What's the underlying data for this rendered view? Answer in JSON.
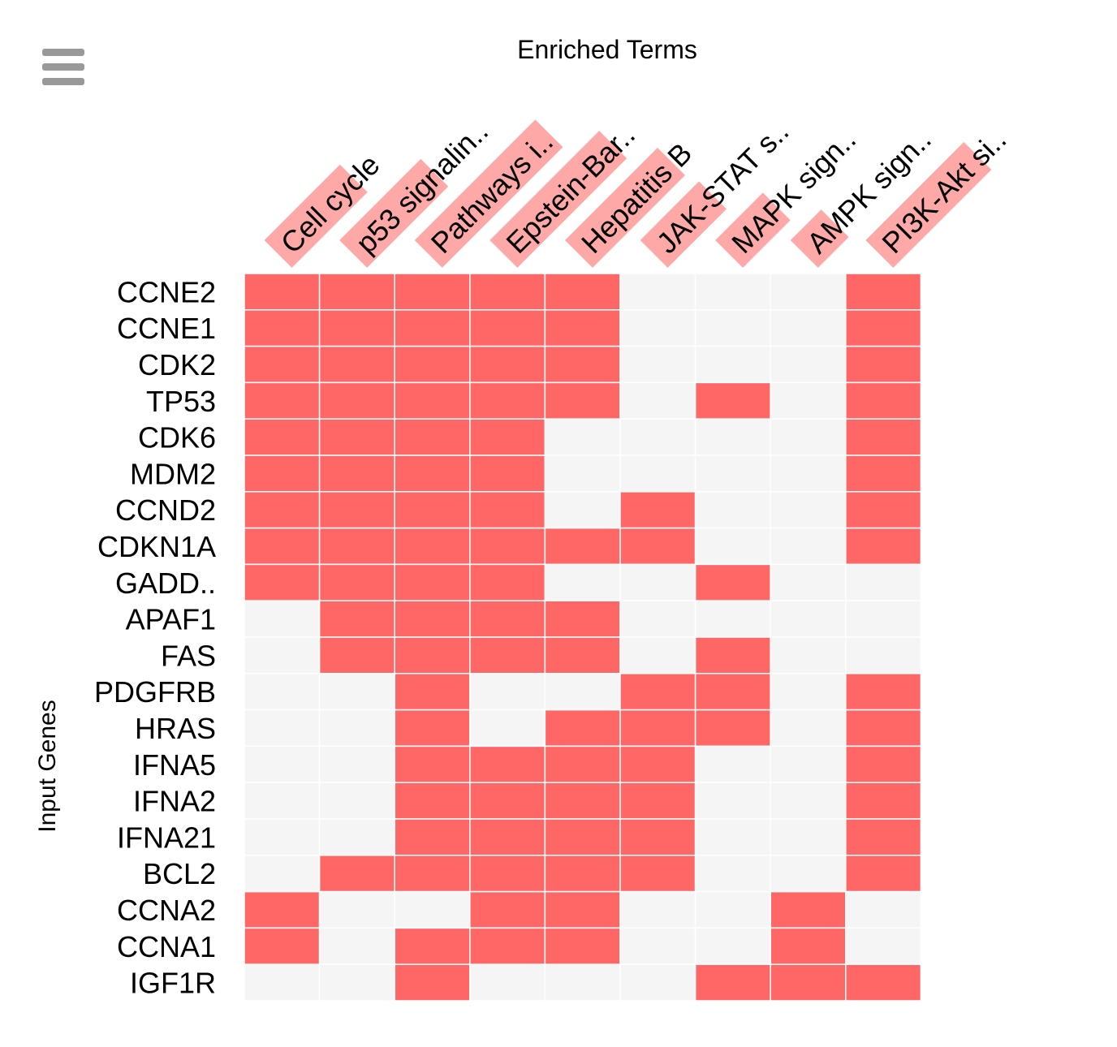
{
  "menu": {
    "icon": "hamburger-menu-icon"
  },
  "chart_data": {
    "type": "heatmap",
    "title": "Enriched Terms",
    "xlabel": "",
    "ylabel": "Input Genes",
    "columns": [
      "Cell cycle",
      "p53 signalin..",
      "Pathways i..",
      "Epstein-Bar..",
      "Hepatitis B",
      "JAK-STAT s..",
      "MAPK sign..",
      "AMPK sign..",
      "PI3K-Akt si.."
    ],
    "rows": [
      "CCNE2",
      "CCNE1",
      "CDK2",
      "TP53",
      "CDK6",
      "MDM2",
      "CCND2",
      "CDKN1A",
      "GADD..",
      "APAF1",
      "FAS",
      "PDGFRB",
      "HRAS",
      "IFNA5",
      "IFNA2",
      "IFNA21",
      "BCL2",
      "CCNA2",
      "CCNA1",
      "IGF1R"
    ],
    "matrix": [
      [
        1,
        1,
        1,
        1,
        1,
        0,
        0,
        0,
        1
      ],
      [
        1,
        1,
        1,
        1,
        1,
        0,
        0,
        0,
        1
      ],
      [
        1,
        1,
        1,
        1,
        1,
        0,
        0,
        0,
        1
      ],
      [
        1,
        1,
        1,
        1,
        1,
        0,
        1,
        0,
        1
      ],
      [
        1,
        1,
        1,
        1,
        0,
        0,
        0,
        0,
        1
      ],
      [
        1,
        1,
        1,
        1,
        0,
        0,
        0,
        0,
        1
      ],
      [
        1,
        1,
        1,
        1,
        0,
        1,
        0,
        0,
        1
      ],
      [
        1,
        1,
        1,
        1,
        1,
        1,
        0,
        0,
        1
      ],
      [
        1,
        1,
        1,
        1,
        0,
        0,
        1,
        0,
        0
      ],
      [
        0,
        1,
        1,
        1,
        1,
        0,
        0,
        0,
        0
      ],
      [
        0,
        1,
        1,
        1,
        1,
        0,
        1,
        0,
        0
      ],
      [
        0,
        0,
        1,
        0,
        0,
        1,
        1,
        0,
        1
      ],
      [
        0,
        0,
        1,
        0,
        1,
        1,
        1,
        0,
        1
      ],
      [
        0,
        0,
        1,
        1,
        1,
        1,
        0,
        0,
        1
      ],
      [
        0,
        0,
        1,
        1,
        1,
        1,
        0,
        0,
        1
      ],
      [
        0,
        0,
        1,
        1,
        1,
        1,
        0,
        0,
        1
      ],
      [
        0,
        1,
        1,
        1,
        1,
        1,
        0,
        0,
        1
      ],
      [
        1,
        0,
        0,
        1,
        1,
        0,
        0,
        1,
        0
      ],
      [
        1,
        0,
        1,
        1,
        1,
        0,
        0,
        1,
        0
      ],
      [
        0,
        0,
        1,
        0,
        0,
        0,
        1,
        1,
        1
      ]
    ],
    "legend": "none",
    "colors": {
      "present": "#ff6666",
      "absent": "#f5f5f5",
      "cell_border": "#ffffff",
      "column_label_bar": "#ffa8a8"
    }
  }
}
